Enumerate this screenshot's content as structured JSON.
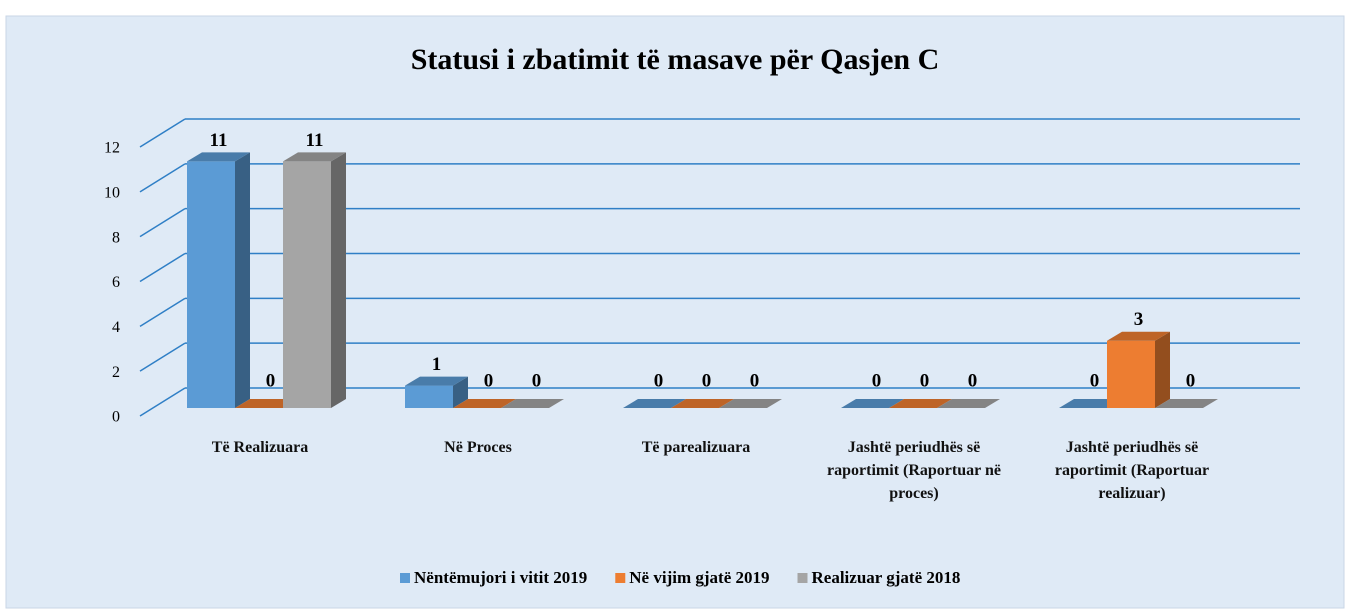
{
  "chart_data": {
    "type": "bar3d",
    "title": "Statusi i zbatimit të masave për Qasjen C",
    "categories": [
      "Të Realizuara",
      "Në Proces",
      "Të parealizuara",
      "Jashtë periudhës së raportimit (Raportuar në proces)",
      "Jashtë periudhës së raportimit (Raportuar realizuar)"
    ],
    "series": [
      {
        "name": "Nëntëmujori i vitit 2019",
        "color": "#5b9bd5",
        "values": [
          11,
          1,
          0,
          0,
          0
        ]
      },
      {
        "name": "Në vijim gjatë 2019",
        "color": "#ed7d31",
        "values": [
          0,
          0,
          0,
          0,
          3
        ]
      },
      {
        "name": "Realizuar gjatë 2018",
        "color": "#a5a5a5",
        "values": [
          11,
          0,
          0,
          0,
          0
        ]
      }
    ],
    "ylim": [
      0,
      12
    ],
    "yticks": [
      0,
      2,
      4,
      6,
      8,
      10,
      12
    ],
    "grid": true,
    "legend": "bottom"
  }
}
